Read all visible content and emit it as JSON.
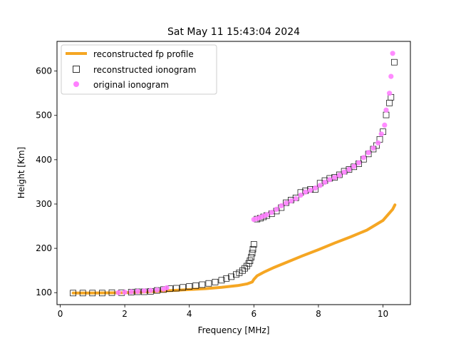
{
  "chart_data": {
    "type": "scatter",
    "title": "Sat May 11 15:43:04 2024",
    "xlabel": "Frequency [MHz]",
    "ylabel": "Height [Km]",
    "xlim": [
      -0.1,
      10.85
    ],
    "ylim": [
      73,
      667
    ],
    "xticks": [
      0,
      2,
      4,
      6,
      8,
      10
    ],
    "yticks": [
      100,
      200,
      300,
      400,
      500,
      600
    ],
    "xtick_labels": [
      "0",
      "2",
      "4",
      "6",
      "8",
      "10"
    ],
    "ytick_labels": [
      "100",
      "200",
      "300",
      "400",
      "500",
      "600"
    ],
    "grid": false,
    "legend_position": "upper-left",
    "legend": [
      {
        "label": "reconstructed fp profile",
        "kind": "line",
        "color": "#f5a623"
      },
      {
        "label": "reconstructed ionogram",
        "kind": "open-square",
        "color": "#000000"
      },
      {
        "label": "original ionogram",
        "kind": "dot",
        "color": "#ff80ff"
      }
    ],
    "series": [
      {
        "name": "reconstructed fp profile",
        "kind": "line",
        "color": "#f5a623",
        "x": [
          0.4,
          1.0,
          2.0,
          3.0,
          4.0,
          4.5,
          5.0,
          5.5,
          5.8,
          5.95,
          6.0,
          6.1,
          6.3,
          6.6,
          7.0,
          7.5,
          8.0,
          8.5,
          9.0,
          9.5,
          10.0,
          10.3,
          10.37
        ],
        "y": [
          99,
          99,
          100,
          103,
          107,
          109,
          112,
          116,
          120,
          124,
          130,
          138,
          146,
          156,
          168,
          183,
          197,
          212,
          226,
          241,
          263,
          288,
          298
        ]
      },
      {
        "name": "reconstructed ionogram",
        "kind": "open-square",
        "color": "#000000",
        "x": [
          0.4,
          0.7,
          1.0,
          1.3,
          1.6,
          1.9,
          2.2,
          2.4,
          2.6,
          2.8,
          3.0,
          3.2,
          3.4,
          3.6,
          3.8,
          4.0,
          4.2,
          4.4,
          4.6,
          4.8,
          5.0,
          5.15,
          5.3,
          5.45,
          5.55,
          5.65,
          5.72,
          5.78,
          5.84,
          5.88,
          5.92,
          5.95,
          5.97,
          6.0,
          6.1,
          6.2,
          6.3,
          6.4,
          6.55,
          6.7,
          6.85,
          7.0,
          7.15,
          7.3,
          7.45,
          7.6,
          7.75,
          7.9,
          8.05,
          8.2,
          8.35,
          8.5,
          8.65,
          8.8,
          8.95,
          9.1,
          9.25,
          9.4,
          9.55,
          9.7,
          9.8,
          9.9,
          10.0,
          10.1,
          10.2,
          10.25,
          10.35
        ],
        "y": [
          99,
          99,
          99,
          99,
          100,
          100,
          101,
          102,
          102,
          103,
          105,
          107,
          109,
          110,
          112,
          114,
          116,
          118,
          121,
          124,
          128,
          132,
          136,
          141,
          145,
          150,
          155,
          160,
          166,
          172,
          180,
          189,
          198,
          209,
          266,
          268,
          271,
          274,
          278,
          284,
          292,
          303,
          309,
          314,
          326,
          330,
          333,
          333,
          347,
          353,
          358,
          360,
          366,
          374,
          378,
          384,
          391,
          401,
          413,
          424,
          432,
          446,
          463,
          501,
          528,
          541,
          620
        ]
      },
      {
        "name": "original ionogram",
        "kind": "dot",
        "color": "#ff80ff",
        "x": [
          1.8,
          2.0,
          2.2,
          2.4,
          2.6,
          2.8,
          3.0,
          3.2,
          3.3,
          6.0,
          6.1,
          6.2,
          6.3,
          6.4,
          6.55,
          6.7,
          6.85,
          7.0,
          7.15,
          7.3,
          7.45,
          7.6,
          7.75,
          7.9,
          8.05,
          8.2,
          8.35,
          8.5,
          8.65,
          8.8,
          8.95,
          9.1,
          9.25,
          9.4,
          9.55,
          9.7,
          9.85,
          9.95,
          10.05,
          10.1,
          10.2,
          10.25,
          10.3
        ],
        "y": [
          100,
          101,
          102,
          103,
          104,
          105,
          106,
          108,
          111,
          265,
          267,
          270,
          273,
          276,
          281,
          288,
          296,
          302,
          307,
          312,
          320,
          327,
          331,
          336,
          342,
          349,
          355,
          360,
          365,
          372,
          378,
          385,
          393,
          405,
          416,
          426,
          438,
          458,
          478,
          512,
          550,
          588,
          640
        ]
      }
    ]
  }
}
